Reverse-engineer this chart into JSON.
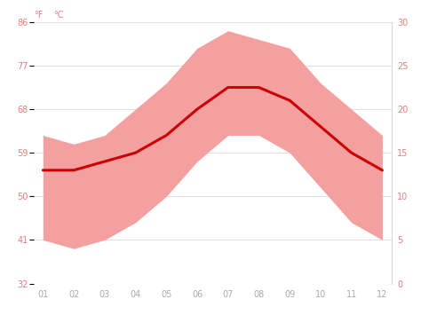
{
  "months": [
    1,
    2,
    3,
    4,
    5,
    6,
    7,
    8,
    9,
    10,
    11,
    12
  ],
  "month_labels": [
    "01",
    "02",
    "03",
    "04",
    "05",
    "06",
    "07",
    "08",
    "09",
    "10",
    "11",
    "12"
  ],
  "avg_temp_c": [
    13.0,
    13.0,
    14.0,
    15.0,
    17.0,
    20.0,
    22.5,
    22.5,
    21.0,
    18.0,
    15.0,
    13.0
  ],
  "max_temp_c": [
    17,
    16,
    17,
    20,
    23,
    27,
    29,
    28,
    27,
    23,
    20,
    17
  ],
  "min_temp_c": [
    5,
    4,
    5,
    7,
    10,
    14,
    17,
    17,
    15,
    11,
    7,
    5
  ],
  "yticks_c": [
    0,
    5,
    10,
    15,
    20,
    25,
    30
  ],
  "yticks_f": [
    32,
    41,
    50,
    59,
    68,
    77,
    86
  ],
  "ylim_c": [
    0,
    30
  ],
  "line_color": "#cc0000",
  "fill_color": "#f5a0a0",
  "background_color": "#ffffff",
  "grid_color": "#d8d8d8",
  "label_color": "#e08080",
  "tick_color": "#e08080",
  "xticklabel_color": "#aaaaaa"
}
